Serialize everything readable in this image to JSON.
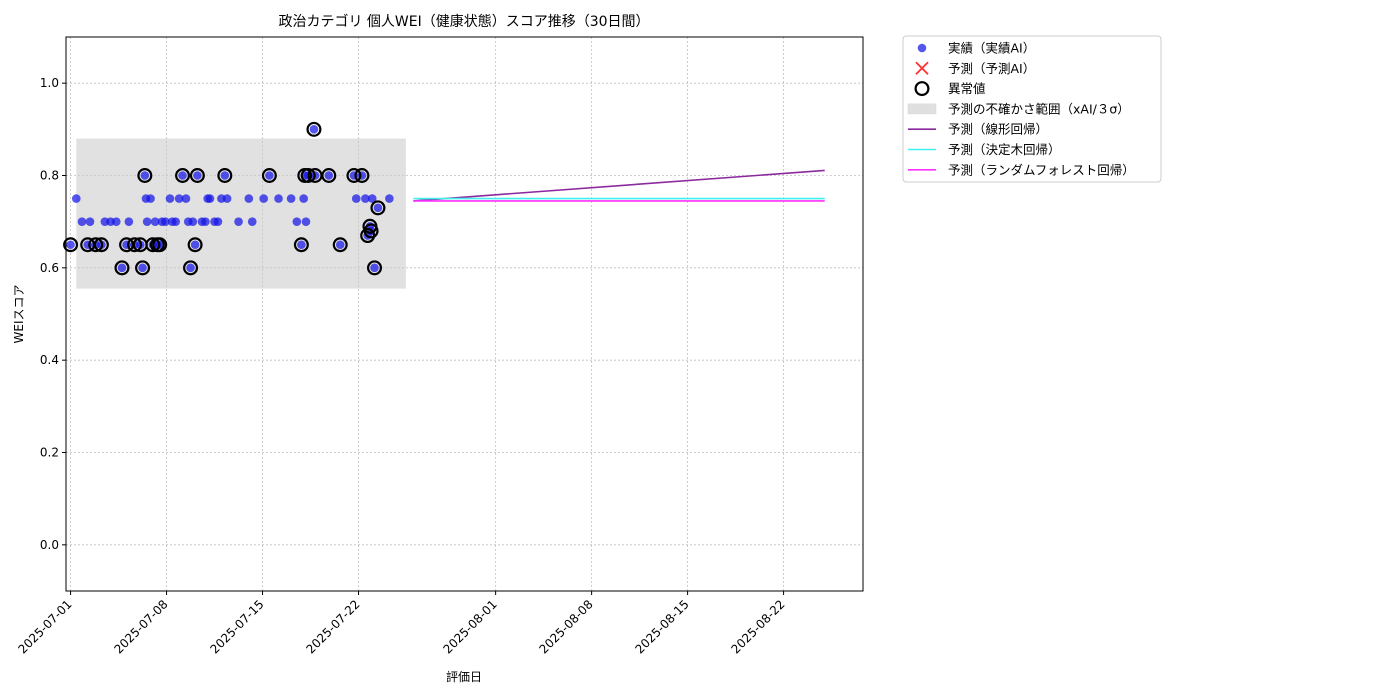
{
  "chart_data": {
    "type": "scatter",
    "title": "政治カテゴリ 個人WEI（健康状態）スコア推移（30日間）",
    "xlabel": "評価日",
    "ylabel": "WEIスコア",
    "ylim": [
      -0.1,
      1.1
    ],
    "xlim": [
      "2025-06-30T16:00",
      "2025-08-27T19:00"
    ],
    "y_ticks": [
      "0.0",
      "0.2",
      "0.4",
      "0.6",
      "0.8",
      "1.0"
    ],
    "x_ticks": [
      "2025-07-01",
      "2025-07-08",
      "2025-07-15",
      "2025-07-22",
      "2025-08-01",
      "2025-08-08",
      "2025-08-15",
      "2025-08-22"
    ],
    "grid": true,
    "legend_position": "outside-top-right",
    "colors": {
      "actual": "#1515e8",
      "forecast": "#ff3030",
      "anomaly": "#000000",
      "band": "#c8c8c8",
      "linear": "#8b2a9e",
      "tree": "#40f0f0",
      "forest": "#ff30ff"
    },
    "legend": [
      {
        "key": "actual",
        "label": "実績（実績AI）",
        "icon": "circle-marker"
      },
      {
        "key": "forecast",
        "label": "予測（予測AI）",
        "icon": "x-marker"
      },
      {
        "key": "anomaly",
        "label": "異常値",
        "icon": "ring-marker"
      },
      {
        "key": "band",
        "label": "予測の不確かさ範囲（xAI/３σ）",
        "icon": "band-patch"
      },
      {
        "key": "linear",
        "label": "予測（線形回帰）",
        "icon": "line"
      },
      {
        "key": "tree",
        "label": "予測（決定木回帰）",
        "icon": "line"
      },
      {
        "key": "forest",
        "label": "予測（ランダムフォレスト回帰）",
        "icon": "line"
      }
    ],
    "uncertainty_band": {
      "x_start": "2025-07-01T10:00",
      "x_end": "2025-07-25T11:00",
      "y_low": 0.555,
      "y_high": 0.88
    },
    "actual_points": [
      {
        "x": "2025-07-01T00:00",
        "y": 0.65
      },
      {
        "x": "2025-07-01T10:00",
        "y": 0.75
      },
      {
        "x": "2025-07-01T20:00",
        "y": 0.7
      },
      {
        "x": "2025-07-02T06:00",
        "y": 0.65
      },
      {
        "x": "2025-07-02T10:00",
        "y": 0.7
      },
      {
        "x": "2025-07-02T20:00",
        "y": 0.65
      },
      {
        "x": "2025-07-03T06:00",
        "y": 0.65
      },
      {
        "x": "2025-07-03T12:00",
        "y": 0.7
      },
      {
        "x": "2025-07-03T22:00",
        "y": 0.7
      },
      {
        "x": "2025-07-04T08:00",
        "y": 0.7
      },
      {
        "x": "2025-07-04T18:00",
        "y": 0.6
      },
      {
        "x": "2025-07-05T02:00",
        "y": 0.65
      },
      {
        "x": "2025-07-05T06:00",
        "y": 0.7
      },
      {
        "x": "2025-07-05T16:00",
        "y": 0.65
      },
      {
        "x": "2025-07-06T02:00",
        "y": 0.65
      },
      {
        "x": "2025-07-06T06:00",
        "y": 0.6
      },
      {
        "x": "2025-07-06T10:00",
        "y": 0.8
      },
      {
        "x": "2025-07-06T12:00",
        "y": 0.75
      },
      {
        "x": "2025-07-06T14:00",
        "y": 0.7
      },
      {
        "x": "2025-07-06T20:00",
        "y": 0.75
      },
      {
        "x": "2025-07-07T00:00",
        "y": 0.65
      },
      {
        "x": "2025-07-07T04:00",
        "y": 0.7
      },
      {
        "x": "2025-07-07T08:00",
        "y": 0.65
      },
      {
        "x": "2025-07-07T12:00",
        "y": 0.65
      },
      {
        "x": "2025-07-07T16:00",
        "y": 0.7
      },
      {
        "x": "2025-07-07T22:00",
        "y": 0.7
      },
      {
        "x": "2025-07-08T06:00",
        "y": 0.75
      },
      {
        "x": "2025-07-08T10:00",
        "y": 0.7
      },
      {
        "x": "2025-07-08T16:00",
        "y": 0.7
      },
      {
        "x": "2025-07-08T22:00",
        "y": 0.75
      },
      {
        "x": "2025-07-09T04:00",
        "y": 0.8
      },
      {
        "x": "2025-07-09T10:00",
        "y": 0.75
      },
      {
        "x": "2025-07-09T14:00",
        "y": 0.7
      },
      {
        "x": "2025-07-09T18:00",
        "y": 0.6
      },
      {
        "x": "2025-07-09T22:00",
        "y": 0.7
      },
      {
        "x": "2025-07-10T02:00",
        "y": 0.65
      },
      {
        "x": "2025-07-10T06:00",
        "y": 0.8
      },
      {
        "x": "2025-07-10T14:00",
        "y": 0.7
      },
      {
        "x": "2025-07-10T20:00",
        "y": 0.7
      },
      {
        "x": "2025-07-11T00:00",
        "y": 0.75
      },
      {
        "x": "2025-07-11T04:00",
        "y": 0.75
      },
      {
        "x": "2025-07-11T12:00",
        "y": 0.7
      },
      {
        "x": "2025-07-11T18:00",
        "y": 0.7
      },
      {
        "x": "2025-07-12T00:00",
        "y": 0.75
      },
      {
        "x": "2025-07-12T06:00",
        "y": 0.8
      },
      {
        "x": "2025-07-12T10:00",
        "y": 0.75
      },
      {
        "x": "2025-07-13T06:00",
        "y": 0.7
      },
      {
        "x": "2025-07-14T00:00",
        "y": 0.75
      },
      {
        "x": "2025-07-14T06:00",
        "y": 0.7
      },
      {
        "x": "2025-07-15T02:00",
        "y": 0.75
      },
      {
        "x": "2025-07-15T12:00",
        "y": 0.8
      },
      {
        "x": "2025-07-16T04:00",
        "y": 0.75
      },
      {
        "x": "2025-07-17T02:00",
        "y": 0.75
      },
      {
        "x": "2025-07-17T12:00",
        "y": 0.7
      },
      {
        "x": "2025-07-17T20:00",
        "y": 0.65
      },
      {
        "x": "2025-07-18T00:00",
        "y": 0.75
      },
      {
        "x": "2025-07-18T02:00",
        "y": 0.8
      },
      {
        "x": "2025-07-18T04:00",
        "y": 0.7
      },
      {
        "x": "2025-07-18T08:00",
        "y": 0.8
      },
      {
        "x": "2025-07-18T18:00",
        "y": 0.9
      },
      {
        "x": "2025-07-18T20:00",
        "y": 0.8
      },
      {
        "x": "2025-07-19T20:00",
        "y": 0.8
      },
      {
        "x": "2025-07-20T16:00",
        "y": 0.65
      },
      {
        "x": "2025-07-21T16:00",
        "y": 0.8
      },
      {
        "x": "2025-07-21T20:00",
        "y": 0.75
      },
      {
        "x": "2025-07-22T06:00",
        "y": 0.8
      },
      {
        "x": "2025-07-22T12:00",
        "y": 0.75
      },
      {
        "x": "2025-07-22T16:00",
        "y": 0.67
      },
      {
        "x": "2025-07-22T20:00",
        "y": 0.69
      },
      {
        "x": "2025-07-22T22:00",
        "y": 0.68
      },
      {
        "x": "2025-07-23T00:00",
        "y": 0.75
      },
      {
        "x": "2025-07-23T04:00",
        "y": 0.6
      },
      {
        "x": "2025-07-23T10:00",
        "y": 0.73
      },
      {
        "x": "2025-07-24T06:00",
        "y": 0.75
      }
    ],
    "anomaly_points": [
      {
        "x": "2025-07-01T00:00",
        "y": 0.65
      },
      {
        "x": "2025-07-02T06:00",
        "y": 0.65
      },
      {
        "x": "2025-07-02T20:00",
        "y": 0.65
      },
      {
        "x": "2025-07-03T06:00",
        "y": 0.65
      },
      {
        "x": "2025-07-04T18:00",
        "y": 0.6
      },
      {
        "x": "2025-07-05T02:00",
        "y": 0.65
      },
      {
        "x": "2025-07-05T16:00",
        "y": 0.65
      },
      {
        "x": "2025-07-06T02:00",
        "y": 0.65
      },
      {
        "x": "2025-07-06T06:00",
        "y": 0.6
      },
      {
        "x": "2025-07-06T10:00",
        "y": 0.8
      },
      {
        "x": "2025-07-07T00:00",
        "y": 0.65
      },
      {
        "x": "2025-07-07T08:00",
        "y": 0.65
      },
      {
        "x": "2025-07-07T12:00",
        "y": 0.65
      },
      {
        "x": "2025-07-09T04:00",
        "y": 0.8
      },
      {
        "x": "2025-07-09T18:00",
        "y": 0.6
      },
      {
        "x": "2025-07-10T02:00",
        "y": 0.65
      },
      {
        "x": "2025-07-10T06:00",
        "y": 0.8
      },
      {
        "x": "2025-07-12T06:00",
        "y": 0.8
      },
      {
        "x": "2025-07-15T12:00",
        "y": 0.8
      },
      {
        "x": "2025-07-17T20:00",
        "y": 0.65
      },
      {
        "x": "2025-07-18T02:00",
        "y": 0.8
      },
      {
        "x": "2025-07-18T08:00",
        "y": 0.8
      },
      {
        "x": "2025-07-18T18:00",
        "y": 0.9
      },
      {
        "x": "2025-07-18T20:00",
        "y": 0.8
      },
      {
        "x": "2025-07-19T20:00",
        "y": 0.8
      },
      {
        "x": "2025-07-20T16:00",
        "y": 0.65
      },
      {
        "x": "2025-07-21T16:00",
        "y": 0.8
      },
      {
        "x": "2025-07-22T06:00",
        "y": 0.8
      },
      {
        "x": "2025-07-22T16:00",
        "y": 0.67
      },
      {
        "x": "2025-07-22T20:00",
        "y": 0.69
      },
      {
        "x": "2025-07-22T22:00",
        "y": 0.68
      },
      {
        "x": "2025-07-23T04:00",
        "y": 0.6
      },
      {
        "x": "2025-07-23T10:00",
        "y": 0.73
      }
    ],
    "forecast_lines": [
      {
        "key": "linear",
        "name": "予測（線形回帰）",
        "x": [
          "2025-07-26T00:00",
          "2025-08-25T00:00"
        ],
        "y": [
          0.745,
          0.811
        ]
      },
      {
        "key": "tree",
        "name": "予測（決定木回帰）",
        "x": [
          "2025-07-26T00:00",
          "2025-08-25T00:00"
        ],
        "y": [
          0.75,
          0.75
        ]
      },
      {
        "key": "forest",
        "name": "予測（ランダムフォレスト回帰）",
        "x": [
          "2025-07-26T00:00",
          "2025-08-25T00:00"
        ],
        "y": [
          0.745,
          0.745
        ]
      }
    ]
  }
}
